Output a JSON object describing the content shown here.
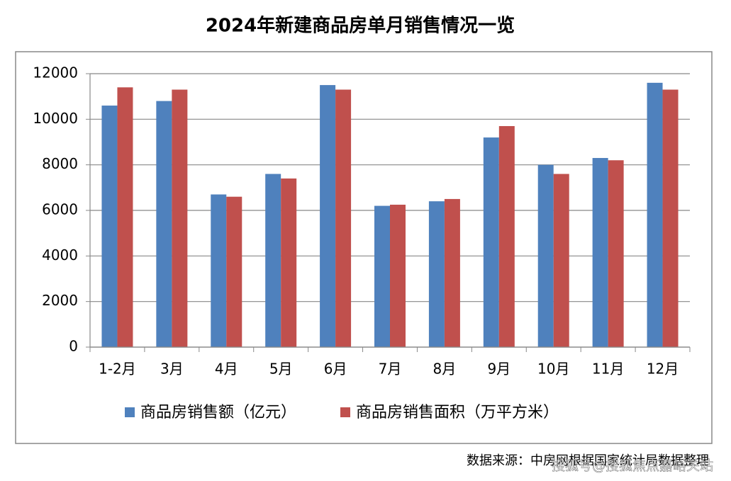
{
  "chart_data": {
    "type": "bar",
    "title": "2024年新建商品房单月销售情况一览",
    "categories": [
      "1-2月",
      "3月",
      "4月",
      "5月",
      "6月",
      "7月",
      "8月",
      "9月",
      "10月",
      "11月",
      "12月"
    ],
    "series": [
      {
        "name": "商品房销售额（亿元）",
        "color": "#4f81bd",
        "values": [
          10600,
          10800,
          6700,
          7600,
          11500,
          6200,
          6400,
          9200,
          8000,
          8300,
          11600
        ]
      },
      {
        "name": "商品房销售面积（万平方米）",
        "color": "#c0504d",
        "values": [
          11400,
          11300,
          6600,
          7400,
          11300,
          6250,
          6500,
          9700,
          7600,
          8200,
          11300
        ]
      }
    ],
    "ylim": [
      0,
      12000
    ],
    "yticks": [
      0,
      2000,
      4000,
      6000,
      8000,
      10000,
      12000
    ],
    "grid": true,
    "legend": "bottom",
    "source": "数据来源：中房网根据国家统计局数据整理",
    "watermark": "搜狐号@搜狐焦点嘉峪关站"
  }
}
